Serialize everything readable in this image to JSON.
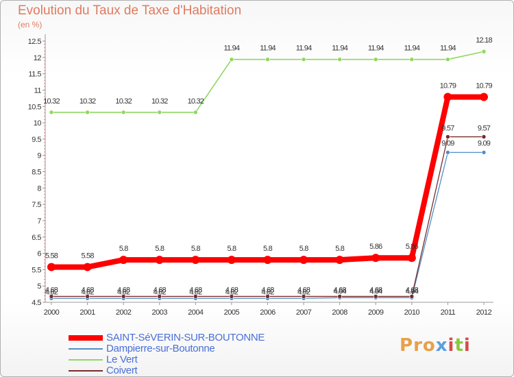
{
  "header": {
    "title": "Evolution du Taux de Taxe d'Habitation",
    "unit": "(en %)"
  },
  "chart_data": {
    "type": "line",
    "title": "Evolution du Taux de Taxe d'Habitation",
    "ylabel": "(en %)",
    "xlabel": "",
    "ylim": [
      4.5,
      12.5
    ],
    "grid": false,
    "legend_position": "bottom-left",
    "x": [
      "2000",
      "2001",
      "2002",
      "2003",
      "2004",
      "2005",
      "2006",
      "2007",
      "2008",
      "2009",
      "2010",
      "2011",
      "2012"
    ],
    "y_ticks": [
      "4.5",
      "5",
      "5.5",
      "6",
      "6.5",
      "7",
      "7.5",
      "8",
      "8.5",
      "9",
      "9.5",
      "10",
      "10.5",
      "11",
      "11.5",
      "12",
      "12.5"
    ],
    "series": [
      {
        "name": "SAINT-SéVERIN-SUR-BOUTONNE",
        "color": "#ff0000",
        "values": [
          5.58,
          5.58,
          5.8,
          5.8,
          5.8,
          5.8,
          5.8,
          5.8,
          5.8,
          5.86,
          5.86,
          10.79,
          10.79
        ],
        "labels": [
          "5.58",
          "5.58",
          "5.8",
          "5.8",
          "5.8",
          "5.8",
          "5.8",
          "5.8",
          "5.8",
          "5.86",
          "5.86",
          "10.79",
          "10.79"
        ]
      },
      {
        "name": "Dampierre-sur-Boutonne",
        "color": "#4f8fc7",
        "values": [
          4.62,
          4.62,
          4.62,
          4.62,
          4.62,
          4.62,
          4.62,
          4.62,
          4.64,
          4.64,
          4.64,
          9.09,
          9.09
        ],
        "labels": [
          "4.62",
          "4.62",
          "4.62",
          "4.62",
          "4.62",
          "4.62",
          "4.62",
          "4.62",
          "4.64",
          "4.64",
          "4.64",
          "9.09",
          "9.09"
        ]
      },
      {
        "name": "Le Vert",
        "color": "#8ed860",
        "values": [
          10.32,
          10.32,
          10.32,
          10.32,
          10.32,
          11.94,
          11.94,
          11.94,
          11.94,
          11.94,
          11.94,
          11.94,
          12.18
        ],
        "labels": [
          "10.32",
          "10.32",
          "10.32",
          "10.32",
          "10.32",
          "11.94",
          "11.94",
          "11.94",
          "11.94",
          "11.94",
          "11.94",
          "11.94",
          "12.18"
        ]
      },
      {
        "name": "Coivert",
        "color": "#7a2a2a",
        "values": [
          4.68,
          4.68,
          4.68,
          4.68,
          4.68,
          4.68,
          4.68,
          4.68,
          4.68,
          4.68,
          4.68,
          9.57,
          9.57
        ],
        "labels": [
          "4.68",
          "4.68",
          "4.68",
          "4.68",
          "4.68",
          "4.68",
          "4.68",
          "4.68",
          "4.68",
          "4.68",
          "4.68",
          "9.57",
          "9.57"
        ]
      }
    ]
  },
  "logo": {
    "text": "Proxiti"
  }
}
